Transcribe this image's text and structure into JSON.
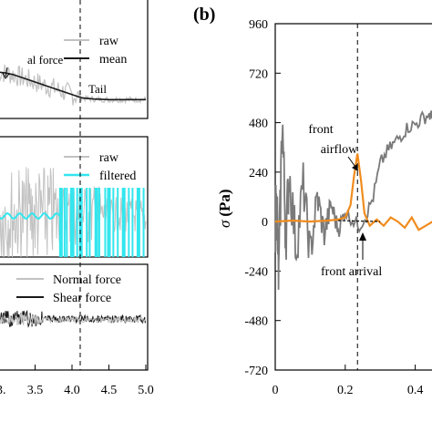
{
  "panel_b_label": "(b)",
  "colors": {
    "raw": "#c2c2c2",
    "mean": "#1a1a1a",
    "filtered": "#33e6ee",
    "panel_b_raw": "#7a7a7a",
    "panel_b_filtered": "#f08c1e",
    "panel_b_dashed": "#000000"
  },
  "chart_data": [
    {
      "type": "line",
      "panel": "a-top",
      "legend": [
        "raw",
        "mean"
      ],
      "annotations": [
        {
          "text": "al force",
          "x": 3.0
        },
        {
          "text": "Tail",
          "x": 4.3
        }
      ],
      "xlim": [
        3.0,
        5.0
      ],
      "mean_series": {
        "x": [
          3.0,
          3.1,
          3.2,
          3.3,
          3.4,
          3.5,
          3.6,
          3.7,
          3.8,
          3.9,
          4.0,
          4.1,
          4.15,
          4.3,
          4.5,
          4.7,
          4.9,
          5.0
        ],
        "y": [
          0.6,
          0.58,
          0.55,
          0.5,
          0.45,
          0.4,
          0.35,
          0.3,
          0.25,
          0.2,
          0.15,
          0.1,
          0.08,
          0.06,
          0.05,
          0.05,
          0.05,
          0.05
        ]
      }
    },
    {
      "type": "line",
      "panel": "a-middle",
      "legend": [
        "raw",
        "filtered"
      ],
      "xlim": [
        3.0,
        5.0
      ]
    },
    {
      "type": "line",
      "panel": "a-bottom",
      "legend": [
        "Normal force",
        "Shear force"
      ],
      "xlim": [
        3.0,
        5.0
      ],
      "xticks": [
        "3.5",
        "4.0",
        "4.5",
        "5.0"
      ],
      "x_tick_values": [
        3.5,
        4.0,
        4.5,
        5.0
      ],
      "x_tick_partial": "3."
    },
    {
      "type": "line",
      "panel": "b",
      "ylabel_symbol": "σ",
      "ylabel_unit": "(Pa)",
      "ylim": [
        -720,
        960
      ],
      "yticks": [
        -720,
        -480,
        -240,
        0,
        240,
        480,
        720,
        960
      ],
      "ytick_labels": [
        "-720",
        "-480",
        "-240",
        "0",
        "240",
        "480",
        "720",
        "960"
      ],
      "xlim": [
        0,
        0.45
      ],
      "xticks": [
        "0",
        "0.2",
        "0.4"
      ],
      "x_tick_values": [
        0,
        0.2,
        0.4
      ],
      "vline_x": 0.235,
      "annotations": [
        {
          "text_lines": [
            "front",
            "airflow"
          ],
          "points_to": [
            0.235,
            330
          ]
        },
        {
          "text": "front arrival",
          "points_to": [
            0.235,
            0
          ]
        }
      ],
      "series": [
        {
          "name": "raw",
          "x": [
            0.0,
            0.005,
            0.01,
            0.02,
            0.03,
            0.04,
            0.06,
            0.08,
            0.1,
            0.12,
            0.14,
            0.16,
            0.18,
            0.2,
            0.22,
            0.24,
            0.26,
            0.28,
            0.3,
            0.32,
            0.34,
            0.36,
            0.38,
            0.4,
            0.42,
            0.44,
            0.45
          ],
          "y": [
            0,
            80,
            -300,
            520,
            -80,
            240,
            -130,
            180,
            -160,
            120,
            -60,
            80,
            -40,
            50,
            10,
            -20,
            30,
            120,
            280,
            340,
            380,
            420,
            460,
            470,
            500,
            520,
            500
          ]
        },
        {
          "name": "filtered",
          "x": [
            0.0,
            0.05,
            0.1,
            0.15,
            0.18,
            0.2,
            0.215,
            0.225,
            0.235,
            0.245,
            0.255,
            0.27,
            0.29,
            0.31,
            0.33,
            0.35,
            0.37,
            0.39,
            0.41,
            0.43,
            0.45
          ],
          "y": [
            0,
            5,
            0,
            5,
            10,
            20,
            80,
            220,
            330,
            200,
            40,
            -20,
            10,
            -20,
            20,
            0,
            -30,
            20,
            -40,
            -20,
            0
          ]
        }
      ]
    }
  ]
}
